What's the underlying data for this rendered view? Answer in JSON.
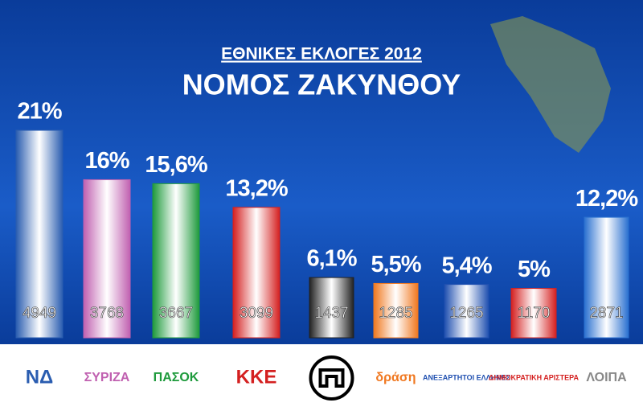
{
  "chart_data": {
    "type": "bar",
    "title": "ΕΘΝΙΚΕΣ ΕΚΛΟΓΕΣ 2012",
    "subtitle": "ΝΟΜΟΣ ΖΑΚΥΝΘΟΥ",
    "categories": [
      "ΝΔ",
      "ΣΥΡΙΖΑ",
      "ΠΑΣΟΚ",
      "ΚΚΕ",
      null,
      "δράση",
      "ΑΝΕΞΑΡΤΗΤΟΙ ΕΛΛΗΝΕΣ",
      "ΔΗΜΟΚΡΑΤΙΚΗ ΑΡΙΣΤΕΡΑ",
      "ΛΟΙΠΑ"
    ],
    "values": [
      21,
      16,
      15.6,
      13.2,
      6.1,
      5.5,
      5.4,
      5,
      12.2
    ],
    "value_labels": [
      "21%",
      "16%",
      "15,6%",
      "13,2%",
      "6,1%",
      "5,5%",
      "5,4%",
      "5%",
      "12,2%"
    ],
    "votes": [
      4949,
      3768,
      3667,
      3099,
      1437,
      1285,
      1265,
      1170,
      2871
    ],
    "colors": [
      "#2a5db0",
      "#c060b0",
      "#1e9a3c",
      "#d42020",
      "#222222",
      "#f07820",
      "#2050b0",
      "#d42020",
      "#2a70d0"
    ]
  }
}
